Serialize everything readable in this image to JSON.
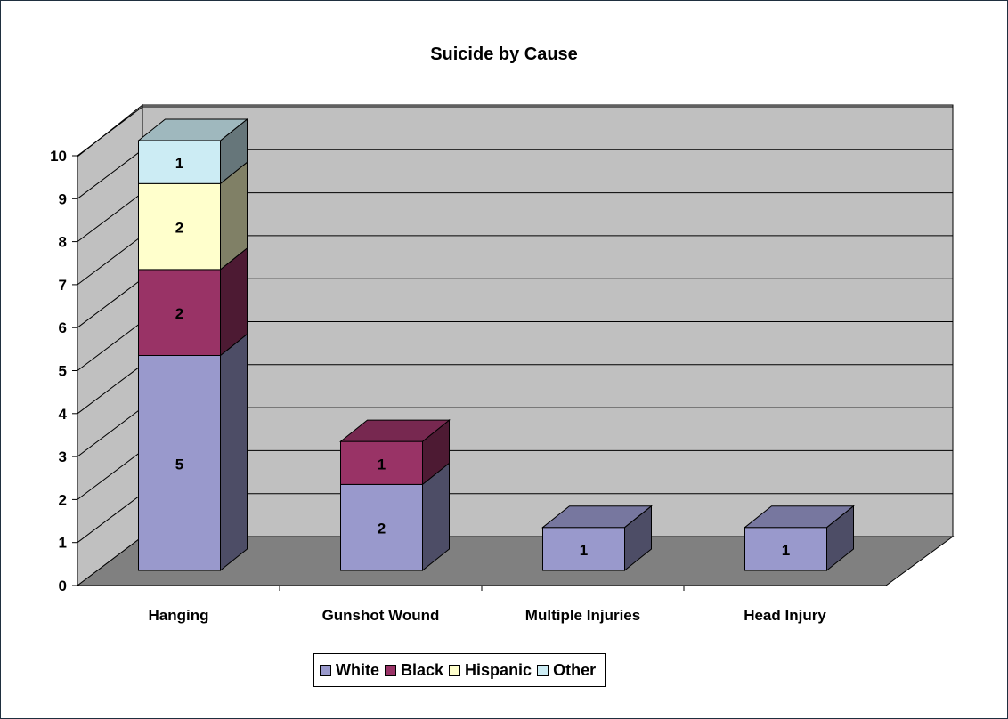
{
  "chart_data": {
    "type": "bar",
    "stacked": true,
    "three_d": true,
    "title": "Suicide by Cause",
    "xlabel": "",
    "ylabel": "",
    "categories": [
      "Hanging",
      "Gunshot Wound",
      "Multiple Injuries",
      "Head Injury"
    ],
    "series": [
      {
        "name": "White",
        "values": [
          5,
          2,
          1,
          1
        ],
        "color": "#9999cc"
      },
      {
        "name": "Black",
        "values": [
          2,
          1,
          0,
          0
        ],
        "color": "#993366"
      },
      {
        "name": "Hispanic",
        "values": [
          2,
          0,
          0,
          0
        ],
        "color": "#ffffcc"
      },
      {
        "name": "Other",
        "values": [
          1,
          0,
          0,
          0
        ],
        "color": "#ccecf4"
      }
    ],
    "ylim": [
      0,
      10
    ],
    "yticks": [
      "0",
      "1",
      "2",
      "3",
      "4",
      "5",
      "6",
      "7",
      "8",
      "9",
      "10"
    ],
    "grid": true,
    "legend_position": "bottom",
    "wall_color": "#c0c0c0",
    "floor_color": "#808080"
  }
}
